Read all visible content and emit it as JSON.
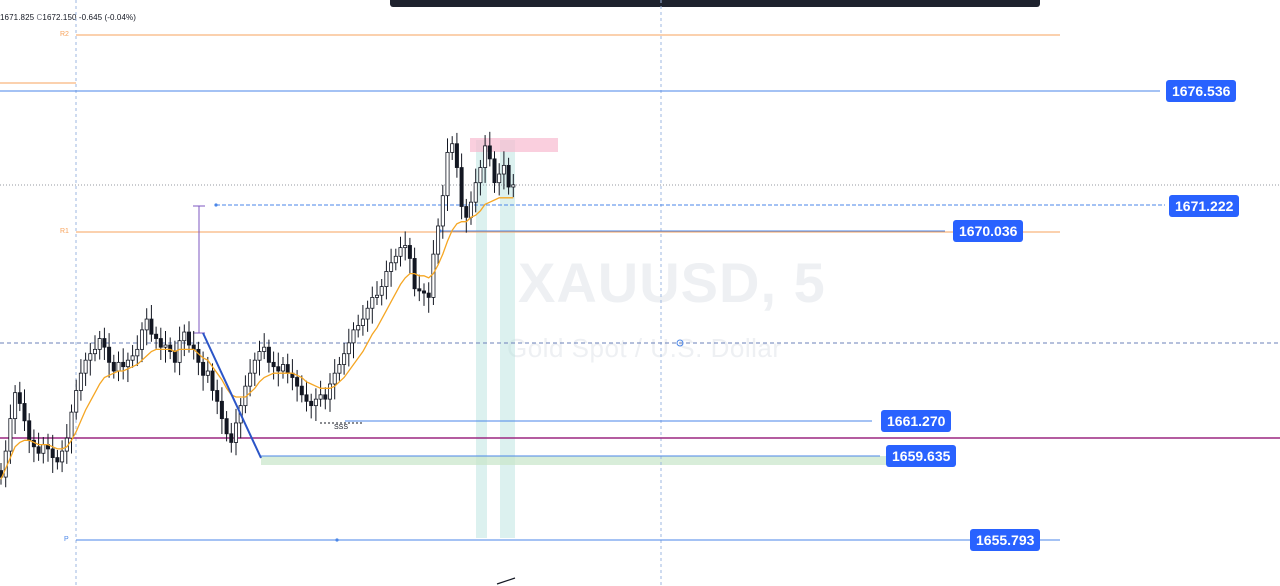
{
  "legend": {
    "h_label": "1671.825",
    "c_label": "C",
    "c_value": "1672.150",
    "change": "-0.645 (-0.04%)"
  },
  "watermark": {
    "symbol": "XAUUSD, 5",
    "description": "Gold Spot / U.S. Dollar"
  },
  "pivots": {
    "r2": "R2",
    "r1": "R1",
    "p": "P"
  },
  "annotation_sss": "SSS",
  "price_tags": [
    "1676.536",
    "1671.222",
    "1670.036",
    "1661.270",
    "1659.635",
    "1655.793"
  ],
  "colors": {
    "price_tag_bg": "#2962ff",
    "pivot_line": "#f7a35c",
    "level_line": "#4a86e8",
    "ma_line": "#f5a623",
    "magenta_line": "#9c2781",
    "vertical_band": "#b2dfdb",
    "resistance_zone": "#f8bbd0",
    "support_zone": "#c8e6c9",
    "candle": "#131722"
  },
  "icons": {
    "cursor": "crosshair-circle-icon",
    "drawing": "trendline-icon"
  },
  "chart_data": {
    "type": "candlestick",
    "symbol": "XAUUSD",
    "timeframe": "5",
    "title": "XAUUSD, 5",
    "subtitle": "Gold Spot / U.S. Dollar",
    "ylim": [
      1654.0,
      1680.0
    ],
    "grid": false,
    "close_series": [
      1658.7,
      1659.9,
      1661.4,
      1662.6,
      1662.1,
      1661.3,
      1660.4,
      1660.1,
      1659.8,
      1660.2,
      1660.0,
      1659.6,
      1659.4,
      1659.9,
      1660.5,
      1661.7,
      1662.7,
      1663.5,
      1664.1,
      1664.4,
      1664.6,
      1665.1,
      1664.7,
      1664.0,
      1663.6,
      1664.0,
      1663.8,
      1664.1,
      1664.3,
      1664.6,
      1665.5,
      1666.0,
      1665.3,
      1665.1,
      1664.7,
      1664.8,
      1664.5,
      1664.0,
      1665.0,
      1665.4,
      1664.8,
      1664.6,
      1664.0,
      1663.4,
      1663.6,
      1662.7,
      1662.2,
      1661.4,
      1660.7,
      1660.3,
      1661.2,
      1662.0,
      1662.9,
      1663.5,
      1664.1,
      1664.5,
      1664.7,
      1664.0,
      1663.8,
      1663.6,
      1663.9,
      1663.5,
      1663.3,
      1662.9,
      1662.5,
      1662.2,
      1662.0,
      1662.3,
      1662.5,
      1662.3,
      1663.0,
      1663.5,
      1663.9,
      1664.4,
      1664.9,
      1665.5,
      1665.7,
      1666.0,
      1666.5,
      1667.0,
      1667.1,
      1667.5,
      1668.2,
      1668.6,
      1668.9,
      1669.3,
      1669.4,
      1668.8,
      1667.4,
      1667.3,
      1667.2,
      1667.0,
      1669.0,
      1670.3,
      1671.7,
      1673.7,
      1674.1,
      1673.0,
      1671.2,
      1670.7,
      1671.4,
      1672.3,
      1673.0,
      1674.0,
      1673.4,
      1672.3,
      1672.7,
      1673.1,
      1672.1,
      1672.2
    ],
    "moving_average": {
      "color": "#f5a623",
      "values": [
        1658.6,
        1659.1,
        1659.6,
        1660.1,
        1660.3,
        1660.4,
        1660.4,
        1660.3,
        1660.2,
        1660.2,
        1660.2,
        1660.1,
        1660.0,
        1660.0,
        1660.1,
        1660.4,
        1660.8,
        1661.3,
        1661.8,
        1662.2,
        1662.6,
        1663.0,
        1663.3,
        1663.4,
        1663.5,
        1663.6,
        1663.6,
        1663.7,
        1663.8,
        1663.9,
        1664.1,
        1664.3,
        1664.5,
        1664.6,
        1664.6,
        1664.6,
        1664.6,
        1664.5,
        1664.6,
        1664.6,
        1664.6,
        1664.6,
        1664.4,
        1664.2,
        1664.1,
        1663.8,
        1663.5,
        1663.2,
        1662.8,
        1662.5,
        1662.4,
        1662.4,
        1662.4,
        1662.6,
        1662.8,
        1663.1,
        1663.3,
        1663.4,
        1663.5,
        1663.5,
        1663.5,
        1663.5,
        1663.5,
        1663.4,
        1663.3,
        1663.1,
        1663.0,
        1662.9,
        1662.8,
        1662.8,
        1662.8,
        1662.9,
        1663.1,
        1663.3,
        1663.6,
        1663.9,
        1664.2,
        1664.5,
        1664.9,
        1665.3,
        1665.6,
        1666.0,
        1666.4,
        1666.8,
        1667.2,
        1667.6,
        1667.9,
        1668.1,
        1668.1,
        1668.0,
        1668.0,
        1667.9,
        1668.1,
        1668.5,
        1669.0,
        1669.6,
        1670.1,
        1670.4,
        1670.5,
        1670.5,
        1670.7,
        1670.8,
        1671.0,
        1671.3,
        1671.4,
        1671.5,
        1671.6,
        1671.6,
        1671.6,
        1671.6
      ]
    },
    "horizontal_levels": [
      {
        "name": "R2",
        "price": 1678.7,
        "color": "#f7a35c"
      },
      {
        "name": "R1",
        "price": 1670.0,
        "color": "#f7a35c"
      },
      {
        "name": "P",
        "price": 1655.7,
        "color": "#4a86e8"
      },
      {
        "price": 1676.536,
        "color": "#4a86e8"
      },
      {
        "price": 1671.222,
        "color": "#4a86e8",
        "style": "dashed"
      },
      {
        "price": 1670.036,
        "color": "#4a86e8"
      },
      {
        "price": 1661.27,
        "color": "#4a86e8"
      },
      {
        "price": 1659.635,
        "color": "#4a86e8"
      },
      {
        "price": 1655.793,
        "color": "#4a86e8"
      },
      {
        "price": 1660.3,
        "color": "#9c2781"
      }
    ],
    "zones": [
      {
        "type": "resistance",
        "from": 1674.0,
        "to": 1674.7,
        "color": "#f8bbd0"
      },
      {
        "type": "support",
        "from": 1659.3,
        "to": 1659.9,
        "color": "#c8e6c9"
      }
    ]
  }
}
